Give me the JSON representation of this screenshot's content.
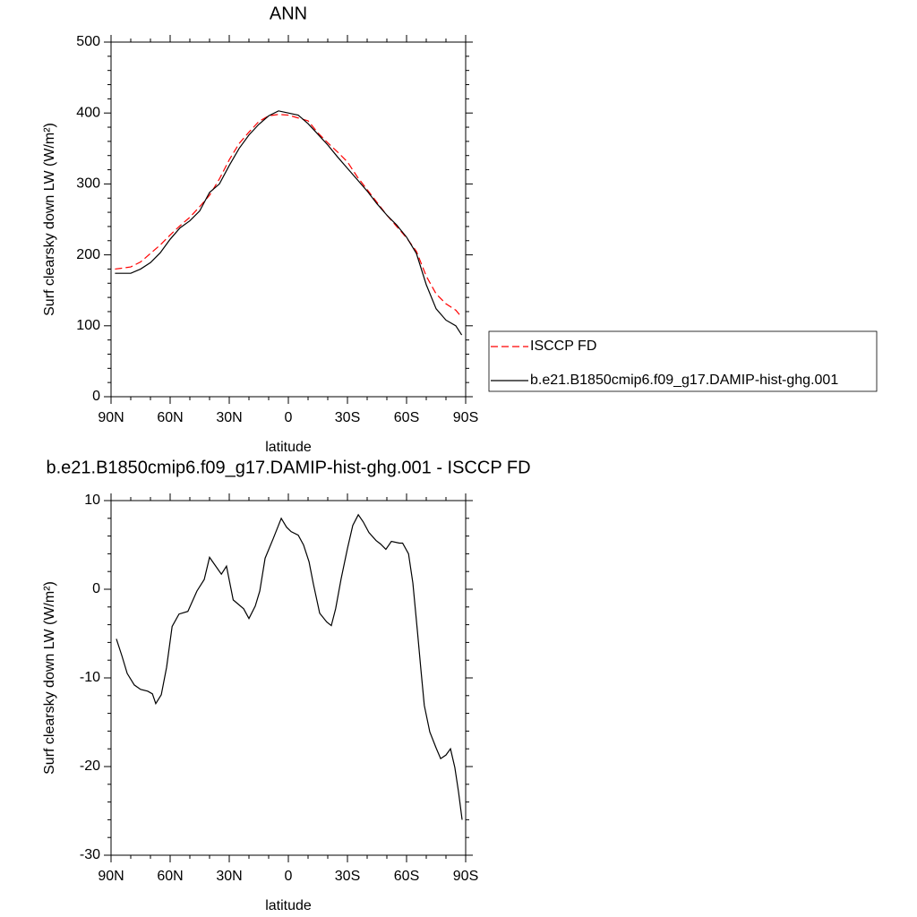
{
  "chart_data": [
    {
      "type": "line",
      "title": "ANN",
      "xlabel": "latitude",
      "ylabel": "Surf clearsky down LW (W/m²)",
      "x": [
        88,
        85,
        80,
        75,
        70,
        65,
        60,
        55,
        50,
        45,
        40,
        35,
        30,
        25,
        20,
        15,
        10,
        5,
        0,
        -5,
        -10,
        -15,
        -20,
        -25,
        -30,
        -35,
        -40,
        -45,
        -50,
        -55,
        -60,
        -65,
        -70,
        -75,
        -80,
        -85,
        -88
      ],
      "xlim": [
        90,
        -90
      ],
      "xticks": [
        {
          "value": 90,
          "label": "90N"
        },
        {
          "value": 60,
          "label": "60N"
        },
        {
          "value": 30,
          "label": "30N"
        },
        0,
        {
          "value": -30,
          "label": "30S"
        },
        {
          "value": -60,
          "label": "60S"
        },
        {
          "value": -90,
          "label": "90S"
        }
      ],
      "ylim": [
        0,
        500
      ],
      "yticks": [
        0,
        100,
        200,
        300,
        400,
        500
      ],
      "legend": "outside-right",
      "series": [
        {
          "name": "ISCCP FD",
          "color": "#ff0000",
          "dashed": true,
          "values": [
            180,
            181,
            183,
            190,
            202,
            214,
            228,
            241,
            253,
            268,
            284,
            307,
            334,
            357,
            373,
            388,
            396,
            398,
            397,
            393,
            389,
            372,
            358,
            345,
            331,
            310,
            292,
            274,
            256,
            240,
            224,
            205,
            170,
            145,
            131,
            122,
            112
          ]
        },
        {
          "name": "b.e21.B1850cmip6.f09_g17.DAMIP-hist-ghg.001",
          "color": "#000000",
          "dashed": false,
          "values": [
            174,
            174,
            174,
            180,
            189,
            203,
            222,
            238,
            248,
            262,
            288,
            300,
            326,
            350,
            369,
            384,
            396,
            403,
            400,
            397,
            385,
            370,
            355,
            338,
            322,
            306,
            290,
            272,
            256,
            242,
            225,
            202,
            158,
            124,
            108,
            100,
            87
          ]
        }
      ]
    },
    {
      "type": "line",
      "title": "b.e21.B1850cmip6.f09_g17.DAMIP-hist-ghg.001 - ISCCP FD",
      "xlabel": "latitude",
      "ylabel": "Surf clearsky down LW (W/m²)",
      "x": [
        87.3,
        84.5,
        81.8,
        78.2,
        75,
        71.4,
        69,
        67.3,
        64.5,
        61.8,
        59,
        55.5,
        51,
        46.4,
        42.7,
        40,
        34,
        31.4,
        28,
        22.7,
        20,
        16.8,
        14.5,
        11.8,
        7.7,
        3.6,
        0.9,
        -1.4,
        -5,
        -7.7,
        -10.5,
        -12.7,
        -15.9,
        -19.5,
        -21.8,
        -24,
        -26.8,
        -30,
        -32.7,
        -35.5,
        -38,
        -40.9,
        -44.5,
        -46.8,
        -49.5,
        -52.3,
        -56.4,
        -58,
        -61,
        -63.2,
        -65.5,
        -67.3,
        -69,
        -71.8,
        -75,
        -77.3,
        -80,
        -82.3,
        -84.5,
        -86.4,
        -88.2
      ],
      "xlim": [
        90,
        -90
      ],
      "xticks": [
        {
          "value": 90,
          "label": "90N"
        },
        {
          "value": 60,
          "label": "60N"
        },
        {
          "value": 30,
          "label": "30N"
        },
        0,
        {
          "value": -30,
          "label": "30S"
        },
        {
          "value": -60,
          "label": "60S"
        },
        {
          "value": -90,
          "label": "90S"
        }
      ],
      "ylim": [
        -30,
        10
      ],
      "yticks": [
        -30,
        -20,
        -10,
        0,
        10
      ],
      "color": "#000000",
      "values": [
        -5.6,
        -7.5,
        -9.5,
        -10.8,
        -11.3,
        -11.5,
        -11.8,
        -12.9,
        -11.9,
        -8.8,
        -4.2,
        -2.8,
        -2.5,
        -0.2,
        1.1,
        3.6,
        1.7,
        2.6,
        -1.2,
        -2.2,
        -3.3,
        -1.9,
        -0.2,
        3.5,
        5.7,
        8.0,
        7.0,
        6.5,
        6.1,
        5.0,
        3.1,
        0.6,
        -2.7,
        -3.7,
        -4.1,
        -2.2,
        1.2,
        4.6,
        7.2,
        8.4,
        7.6,
        6.4,
        5.5,
        5.1,
        4.5,
        5.4,
        5.2,
        5.2,
        4.0,
        0.7,
        -4.7,
        -9.1,
        -13.1,
        -16.1,
        -17.9,
        -19.1,
        -18.7,
        -18.0,
        -20.1,
        -22.9,
        -26.0
      ]
    }
  ]
}
